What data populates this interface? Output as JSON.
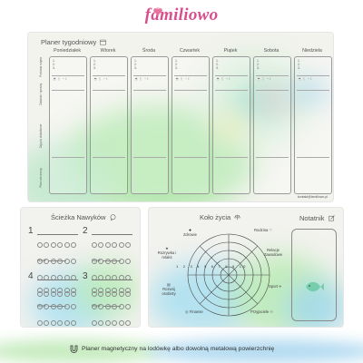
{
  "brand": {
    "name": "familiowo"
  },
  "planner": {
    "title": "Planer tygodniowy",
    "days": [
      "Poniedziałek",
      "Wtorek",
      "Środa",
      "Czwartek",
      "Piątek",
      "Sobota",
      "Niedziela"
    ],
    "row_labels": [
      "Poranna rutyna",
      "Zadania i sprawy",
      "Zajęcia dodatkowe",
      "Plan wieczorny"
    ],
    "email": "kontakt@familiowo.pl"
  },
  "habits": {
    "title": "Ścieżka Nawyków",
    "numbers": [
      "1",
      "2",
      "3",
      "4"
    ],
    "score_label": "Wynik:"
  },
  "wheel": {
    "title": "Koło życia",
    "scale": [
      "1",
      "2",
      "3",
      "4",
      "5",
      "6",
      "7",
      "8",
      "9",
      "10"
    ],
    "areas": [
      "Zdrowie",
      "Rozrywka i relaks",
      "Rozwój osobisty",
      "Finanse",
      "Przyjaciele",
      "Sport",
      "Relacje Zawodowe",
      "Rodzina"
    ],
    "notes_title": "Notatnik"
  },
  "footer": {
    "text": "Planer magnetyczny na lodówkę albo dowolną metalową powierzchnię"
  },
  "colors": {
    "brand": "#d94f8e",
    "accent_green": "#8fe08a",
    "accent_blue": "#7fc4e8"
  }
}
